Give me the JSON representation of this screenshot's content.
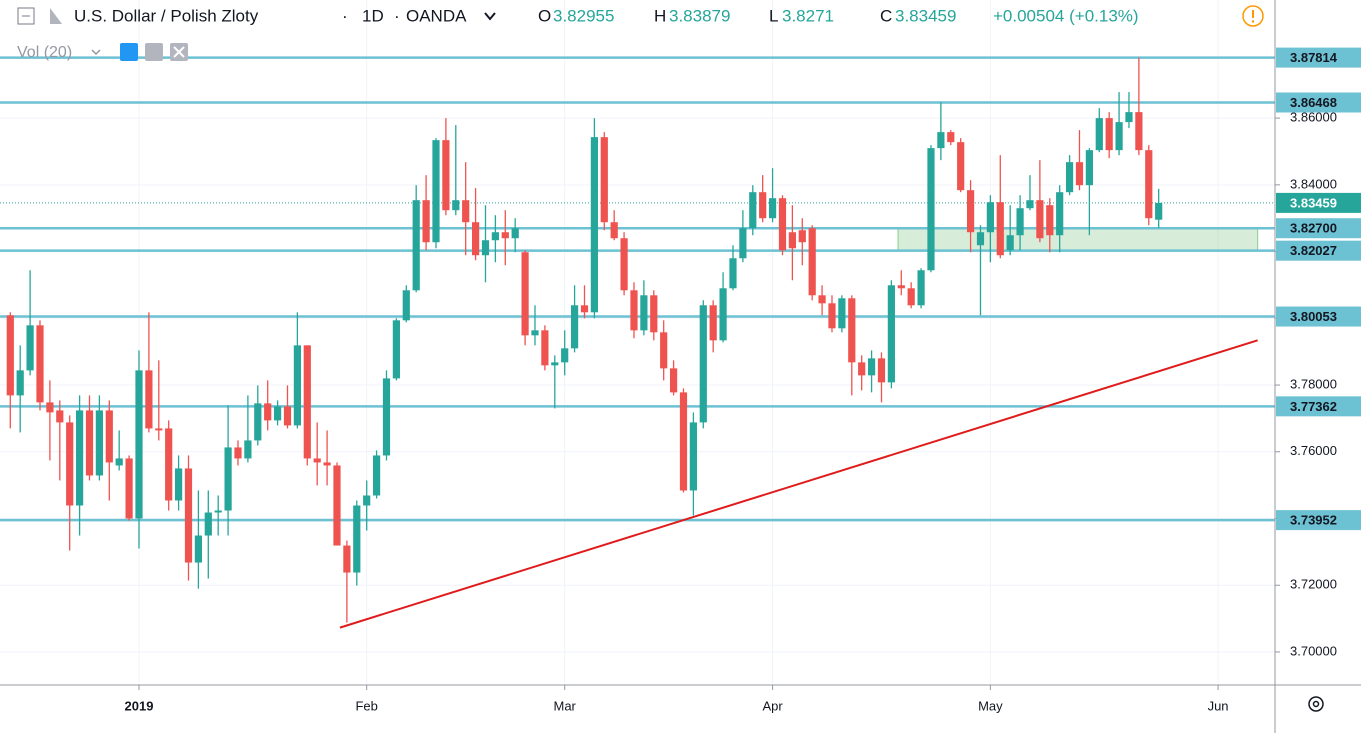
{
  "header": {
    "symbol": "U.S. Dollar / Polish Zloty",
    "interval": "1D",
    "exchange": "OANDA",
    "ohlc": [
      {
        "label": "O",
        "value": 3.82955
      },
      {
        "label": "H",
        "value": 3.83879
      },
      {
        "label": "L",
        "value": 3.8271
      },
      {
        "label": "C",
        "value": 3.83459
      }
    ],
    "change": "+0.00504 (+0.13%)",
    "indicator": "Vol (20)"
  },
  "chart_data": {
    "type": "candlestick",
    "up_color": "#26a69a",
    "down_color": "#ef5350",
    "grid": true,
    "open": [
      3.8009,
      3.7769,
      3.7844,
      3.7979,
      3.7748,
      3.7724,
      3.7688,
      3.7439,
      3.7724,
      3.7529,
      3.7724,
      3.7559,
      3.758,
      3.74,
      3.7844,
      3.767,
      3.767,
      3.7454,
      3.755,
      3.7268,
      3.7349,
      3.7418,
      3.7424,
      3.7613,
      3.758,
      3.7634,
      3.7745,
      3.7694,
      3.7736,
      3.7679,
      3.7919,
      3.758,
      3.7568,
      3.7559,
      3.7319,
      3.7238,
      3.7439,
      3.7469,
      3.7589,
      3.782,
      3.7994,
      3.8084,
      3.8354,
      3.8228,
      3.8534,
      3.8324,
      3.8354,
      3.8288,
      3.8189,
      3.8234,
      3.8258,
      3.824,
      3.8198,
      3.7949,
      3.7964,
      3.7859,
      3.7868,
      3.791,
      3.8039,
      3.8018,
      3.8543,
      3.8288,
      3.824,
      3.8084,
      3.7964,
      3.8069,
      3.7958,
      3.785,
      3.7778,
      3.7484,
      3.7688,
      3.8039,
      3.7934,
      3.809,
      3.818,
      3.827,
      3.8378,
      3.83,
      3.836,
      3.8258,
      3.8264,
      3.827,
      3.8069,
      3.8045,
      3.797,
      3.806,
      3.7868,
      3.7829,
      3.788,
      3.7808,
      3.8099,
      3.809,
      3.8039,
      3.8144,
      3.851,
      3.8558,
      3.8528,
      3.8384,
      3.8219,
      3.8258,
      3.8348,
      3.8204,
      3.8249,
      3.833,
      3.8354,
      3.8339,
      3.8249,
      3.8378,
      3.8468,
      3.8399,
      3.8504,
      3.86,
      3.8504,
      3.8588,
      3.8618,
      3.8504,
      3.82955
    ],
    "high": [
      3.8018,
      3.7919,
      3.8144,
      3.7994,
      3.7814,
      3.7754,
      3.7709,
      3.7769,
      3.7769,
      3.7769,
      3.7754,
      3.7664,
      3.7589,
      3.7904,
      3.8018,
      3.7874,
      3.7694,
      3.7589,
      3.7589,
      3.7484,
      3.7484,
      3.7469,
      3.7739,
      3.7634,
      3.7769,
      3.7799,
      3.7814,
      3.7754,
      3.7799,
      3.8018,
      3.7919,
      3.7688,
      3.7664,
      3.7568,
      3.7334,
      3.7454,
      3.7514,
      3.7604,
      3.7844,
      3.8,
      3.8099,
      3.8399,
      3.8429,
      3.854,
      3.86,
      3.8579,
      3.8468,
      3.839,
      3.8339,
      3.8309,
      3.8324,
      3.83,
      3.8204,
      3.8039,
      3.7979,
      3.7889,
      3.7964,
      3.8099,
      3.8099,
      3.86,
      3.8558,
      3.8324,
      3.8258,
      3.8108,
      3.8114,
      3.8084,
      3.7994,
      3.7874,
      3.779,
      3.7718,
      3.8054,
      3.8054,
      3.8138,
      3.8219,
      3.8324,
      3.8399,
      3.8429,
      3.845,
      3.8369,
      3.8339,
      3.83,
      3.8279,
      3.8099,
      3.8069,
      3.8069,
      3.8069,
      3.7889,
      3.7904,
      3.7898,
      3.8114,
      3.8144,
      3.8108,
      3.815,
      3.8519,
      3.8647,
      3.8564,
      3.854,
      3.8414,
      3.8279,
      3.8369,
      3.8489,
      3.8339,
      3.8369,
      3.8429,
      3.8474,
      3.836,
      3.8399,
      3.8489,
      3.8564,
      3.851,
      3.863,
      3.8618,
      3.8678,
      3.8678,
      3.87814,
      3.8519,
      3.83879
    ],
    "low": [
      3.767,
      3.7658,
      3.7829,
      3.7724,
      3.7574,
      3.7514,
      3.7304,
      3.7349,
      3.7514,
      3.7514,
      3.7454,
      3.7544,
      3.7394,
      3.731,
      3.7658,
      3.7634,
      3.7424,
      3.7424,
      3.7214,
      3.719,
      3.722,
      3.7349,
      3.7349,
      3.7559,
      3.7568,
      3.7619,
      3.7664,
      3.7679,
      3.767,
      3.767,
      3.7559,
      3.7499,
      3.7499,
      3.7319,
      3.7088,
      3.7199,
      3.7364,
      3.746,
      3.7574,
      3.7814,
      3.7988,
      3.8078,
      3.8204,
      3.821,
      3.8309,
      3.8309,
      3.8189,
      3.8174,
      3.8108,
      3.8168,
      3.8159,
      3.8198,
      3.7919,
      3.7919,
      3.7844,
      3.773,
      3.7829,
      3.7898,
      3.8,
      3.8,
      3.8264,
      3.8234,
      3.8069,
      3.794,
      3.7949,
      3.7934,
      3.7814,
      3.7769,
      3.7478,
      3.7409,
      3.767,
      3.7898,
      3.7928,
      3.8084,
      3.8168,
      3.8249,
      3.8288,
      3.8288,
      3.8189,
      3.8114,
      3.8159,
      3.8054,
      3.8009,
      3.7958,
      3.7958,
      3.7769,
      3.7784,
      3.7778,
      3.7748,
      3.779,
      3.8069,
      3.803,
      3.803,
      3.8138,
      3.8474,
      3.8519,
      3.8378,
      3.8198,
      3.8009,
      3.8168,
      3.818,
      3.8189,
      3.8204,
      3.8324,
      3.8228,
      3.8198,
      3.8198,
      3.8369,
      3.8384,
      3.8249,
      3.8498,
      3.848,
      3.8489,
      3.857,
      3.8489,
      3.8279,
      3.8271
    ],
    "close": [
      3.7769,
      3.7844,
      3.7979,
      3.7748,
      3.7718,
      3.7688,
      3.7439,
      3.7724,
      3.7529,
      3.7724,
      3.7568,
      3.758,
      3.74,
      3.7844,
      3.767,
      3.7664,
      3.7454,
      3.755,
      3.7268,
      3.7349,
      3.7418,
      3.7424,
      3.7613,
      3.758,
      3.7634,
      3.7745,
      3.7694,
      3.7736,
      3.7679,
      3.7919,
      3.758,
      3.7568,
      3.7559,
      3.7319,
      3.7238,
      3.7439,
      3.7469,
      3.7589,
      3.782,
      3.7994,
      3.8084,
      3.8354,
      3.8228,
      3.8534,
      3.8324,
      3.8354,
      3.8288,
      3.8189,
      3.8234,
      3.8258,
      3.824,
      3.827,
      3.7949,
      3.7964,
      3.7859,
      3.7868,
      3.791,
      3.8039,
      3.8018,
      3.8543,
      3.8288,
      3.824,
      3.8084,
      3.7964,
      3.8069,
      3.7958,
      3.785,
      3.7778,
      3.7484,
      3.7688,
      3.8039,
      3.7934,
      3.809,
      3.818,
      3.827,
      3.8378,
      3.83,
      3.836,
      3.8204,
      3.821,
      3.8228,
      3.8069,
      3.8045,
      3.797,
      3.806,
      3.7868,
      3.7829,
      3.788,
      3.7808,
      3.8099,
      3.809,
      3.8039,
      3.8144,
      3.851,
      3.8558,
      3.8528,
      3.8384,
      3.8258,
      3.8258,
      3.8348,
      3.8189,
      3.8249,
      3.833,
      3.8354,
      3.824,
      3.8249,
      3.8378,
      3.8468,
      3.8399,
      3.8504,
      3.86,
      3.8504,
      3.8588,
      3.8618,
      3.8504,
      3.83,
      3.83459
    ],
    "xlim": [
      -1.04,
      127.75
    ],
    "xticks": [
      {
        "value": 13,
        "label": "2019"
      },
      {
        "value": 36,
        "label": "Feb"
      },
      {
        "value": 56,
        "label": "Mar"
      },
      {
        "value": 77,
        "label": "Apr"
      },
      {
        "value": 99,
        "label": "May"
      },
      {
        "value": 122,
        "label": "Jun"
      }
    ],
    "ylim": [
      3.6901,
      3.8954
    ],
    "yticks": [
      {
        "value": 3.7,
        "label": "3.70000"
      },
      {
        "value": 3.72,
        "label": "3.72000"
      },
      {
        "value": 3.74,
        "label": "3.74000"
      },
      {
        "value": 3.76,
        "label": "3.76000"
      },
      {
        "value": 3.78,
        "label": "3.78000"
      },
      {
        "value": 3.8,
        "label": "3.80000"
      },
      {
        "value": 3.82,
        "label": "3.82000"
      },
      {
        "value": 3.84,
        "label": "3.84000"
      },
      {
        "value": 3.86,
        "label": "3.86000"
      }
    ],
    "levels": [
      3.87814,
      3.86468,
      {
        "value": 3.827,
        "label": "3.82700"
      },
      3.82027,
      3.80053,
      3.77362,
      3.73952
    ],
    "level_color": "#6cc1d3",
    "last_price": 3.83459,
    "last_price_color": "#26a69a",
    "zone": {
      "x": [
        89.67,
        126.0
      ],
      "y": [
        3.82027,
        3.827
      ],
      "color": "#4caf50"
    },
    "trendline": {
      "x": [
        33.3,
        126.0
      ],
      "y": [
        3.7073,
        3.7934
      ],
      "color": "#e01b1b"
    }
  }
}
